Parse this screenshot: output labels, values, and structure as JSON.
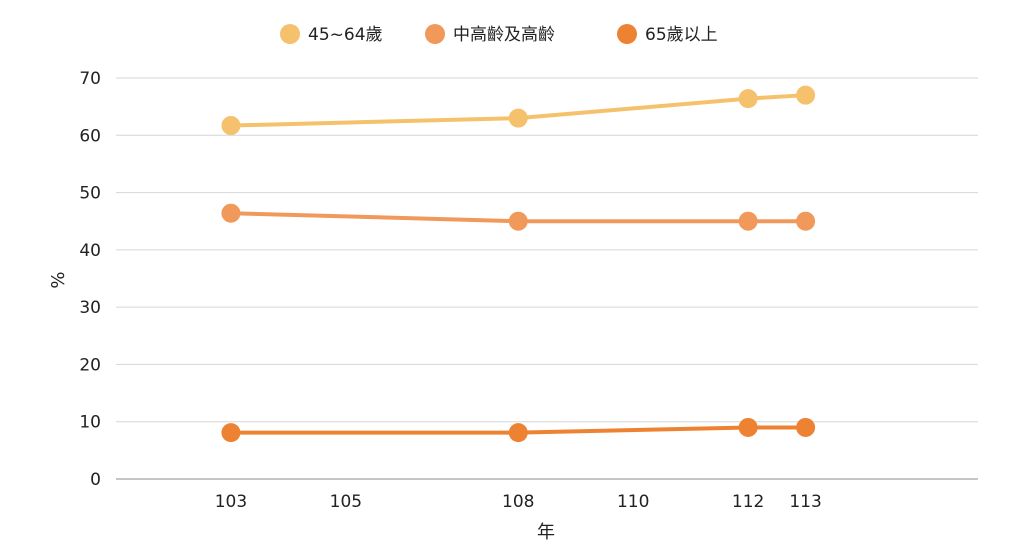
{
  "chart_data": {
    "type": "line",
    "title": "",
    "xlabel": "年",
    "ylabel": "%",
    "x": [
      103,
      108,
      112,
      113
    ],
    "xticks": [
      103,
      105,
      108,
      110,
      112,
      113
    ],
    "xlim": [
      101,
      116
    ],
    "ylim": [
      0,
      70
    ],
    "yticks": [
      0,
      10,
      20,
      30,
      40,
      50,
      60,
      70
    ],
    "grid": "horizontal",
    "legend": "top-center",
    "series": [
      {
        "name": "45~64歲",
        "values": [
          61.7,
          63.0,
          66.4,
          67.0
        ],
        "color": "#F6C16C"
      },
      {
        "name": "中高齡及高齡",
        "values": [
          46.4,
          45.0,
          45.0,
          45.0
        ],
        "color": "#F0995A"
      },
      {
        "name": "65歲以上",
        "values": [
          8.1,
          8.1,
          9.0,
          9.0
        ],
        "color": "#EE8233"
      }
    ]
  }
}
